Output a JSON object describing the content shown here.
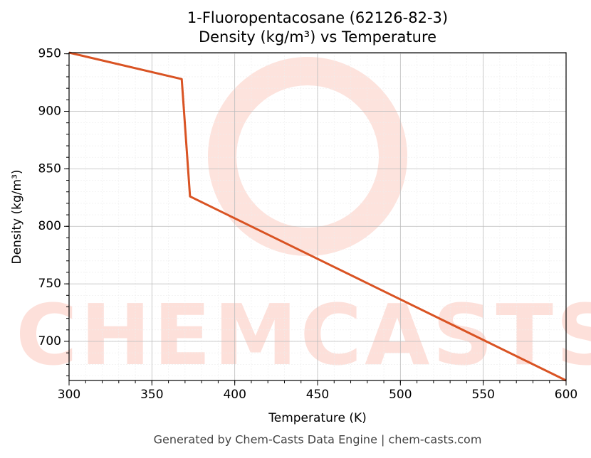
{
  "chart_data": {
    "type": "line",
    "title": "1-Fluoropentacosane (62126-82-3)",
    "subtitle": "Density (kg/m³) vs Temperature",
    "x_label": "Temperature (K)",
    "y_label": "Density (kg/m³)",
    "footer": "Generated by Chem-Casts Data Engine | chem-casts.com",
    "watermark": "CHEMCASTS",
    "x": [
      300,
      368,
      373,
      600
    ],
    "series": [
      {
        "name": "Density",
        "color": "#d95323",
        "values": [
          951,
          928,
          826,
          666
        ]
      }
    ],
    "xlim": [
      300,
      600
    ],
    "xticks": [
      300,
      350,
      400,
      450,
      500,
      550,
      600
    ],
    "ylim": [
      666,
      951
    ],
    "yticks": [
      700,
      750,
      800,
      850,
      900,
      950
    ],
    "grid": true
  }
}
